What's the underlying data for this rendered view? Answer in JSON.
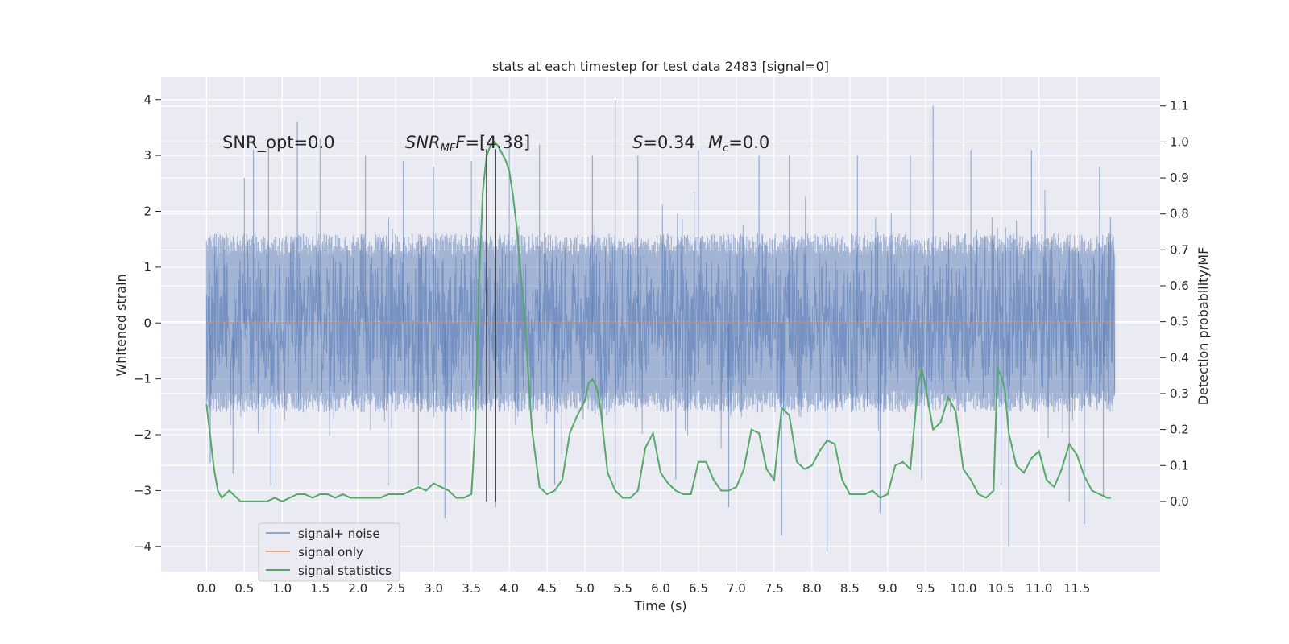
{
  "chart_data": {
    "type": "line",
    "title": "stats at each timestep for test data 2483 [signal=0]",
    "xlabel": "Time (s)",
    "ylabel": "Whitened strain",
    "y2label": "Detection probability/MF",
    "xlim": [
      -0.6,
      12.6
    ],
    "ylim": [
      -4.45,
      4.4
    ],
    "y2lim": [
      -0.195,
      1.18
    ],
    "grid": true,
    "legend_position": "lower-left",
    "x_ticks": [
      "0.0",
      "0.5",
      "1.0",
      "1.5",
      "2.0",
      "2.5",
      "3.0",
      "3.5",
      "4.0",
      "4.5",
      "5.0",
      "5.5",
      "6.0",
      "6.5",
      "7.0",
      "7.5",
      "8.0",
      "8.5",
      "9.0",
      "9.5",
      "10.0",
      "10.5",
      "11.0",
      "11.5"
    ],
    "y_ticks": [
      "4",
      "3",
      "2",
      "1",
      "0",
      "−1",
      "−2",
      "−3",
      "−4"
    ],
    "y2_ticks": [
      "1.1",
      "1.0",
      "0.9",
      "0.8",
      "0.7",
      "0.6",
      "0.5",
      "0.4",
      "0.3",
      "0.2",
      "0.1",
      "0.0"
    ],
    "annotations": {
      "snr_opt": "SNR_opt=0.0",
      "snr_mf_prefix": "SNR",
      "snr_mf_sub": "MF",
      "snr_mf_value": "=[4.38]",
      "s_var": "S",
      "s_value": "=0.34",
      "mc_var": "M",
      "mc_sub": "c",
      "mc_value": "=0.0"
    },
    "markers_x": [
      3.7,
      3.82
    ],
    "series": [
      {
        "name": "signal+ noise",
        "color": "#4c72b0",
        "description_values": "whitened strain noise, roughly gaussian with extremes",
        "x_range": [
          0.0,
          12.0
        ],
        "spikes": [
          [
            0.05,
            -2.5
          ],
          [
            0.35,
            -2.7
          ],
          [
            0.5,
            2.6
          ],
          [
            0.62,
            3.1
          ],
          [
            0.82,
            3.2
          ],
          [
            0.85,
            -2.9
          ],
          [
            1.2,
            3.6
          ],
          [
            1.5,
            3.3
          ],
          [
            2.1,
            3.0
          ],
          [
            2.4,
            -2.9
          ],
          [
            2.6,
            2.9
          ],
          [
            2.8,
            -2.9
          ],
          [
            3.0,
            2.8
          ],
          [
            3.15,
            -3.5
          ],
          [
            3.5,
            2.9
          ],
          [
            3.82,
            -3.3
          ],
          [
            4.0,
            3.4
          ],
          [
            4.4,
            3.2
          ],
          [
            4.6,
            -2.9
          ],
          [
            5.1,
            3.0
          ],
          [
            5.4,
            4.0
          ],
          [
            5.4,
            -2.9
          ],
          [
            5.7,
            3.0
          ],
          [
            6.2,
            -2.8
          ],
          [
            6.5,
            3.1
          ],
          [
            6.9,
            -3.3
          ],
          [
            7.3,
            3.0
          ],
          [
            7.6,
            -3.8
          ],
          [
            7.7,
            3.0
          ],
          [
            8.2,
            -4.1
          ],
          [
            8.6,
            3.0
          ],
          [
            8.9,
            -3.4
          ],
          [
            9.3,
            3.0
          ],
          [
            9.45,
            -2.8
          ],
          [
            9.6,
            3.9
          ],
          [
            10.1,
            3.1
          ],
          [
            10.5,
            -2.9
          ],
          [
            10.6,
            -4.0
          ],
          [
            10.9,
            3.1
          ],
          [
            11.4,
            -3.2
          ],
          [
            11.6,
            -3.6
          ],
          [
            11.8,
            2.8
          ],
          [
            11.85,
            -3.1
          ]
        ]
      },
      {
        "name": "signal only",
        "color": "#dd8452",
        "x": [
          0.0,
          12.0
        ],
        "y": [
          0.0,
          0.0
        ]
      },
      {
        "name": "signal statistics",
        "color": "#55a868",
        "axis": "right",
        "x": [
          0.0,
          0.05,
          0.1,
          0.15,
          0.2,
          0.25,
          0.3,
          0.35,
          0.4,
          0.45,
          0.5,
          0.6,
          0.7,
          0.8,
          0.9,
          1.0,
          1.1,
          1.2,
          1.3,
          1.4,
          1.5,
          1.6,
          1.7,
          1.8,
          1.9,
          2.0,
          2.1,
          2.2,
          2.3,
          2.4,
          2.5,
          2.6,
          2.7,
          2.8,
          2.9,
          3.0,
          3.1,
          3.2,
          3.3,
          3.4,
          3.5,
          3.55,
          3.6,
          3.65,
          3.7,
          3.75,
          3.8,
          3.85,
          3.9,
          3.95,
          4.0,
          4.05,
          4.1,
          4.15,
          4.2,
          4.3,
          4.4,
          4.5,
          4.6,
          4.7,
          4.8,
          4.9,
          5.0,
          5.05,
          5.1,
          5.15,
          5.2,
          5.3,
          5.4,
          5.5,
          5.6,
          5.7,
          5.8,
          5.9,
          6.0,
          6.1,
          6.2,
          6.3,
          6.4,
          6.5,
          6.6,
          6.7,
          6.8,
          6.9,
          7.0,
          7.1,
          7.2,
          7.3,
          7.4,
          7.5,
          7.6,
          7.7,
          7.8,
          7.9,
          8.0,
          8.1,
          8.2,
          8.3,
          8.4,
          8.5,
          8.6,
          8.7,
          8.8,
          8.9,
          9.0,
          9.1,
          9.2,
          9.3,
          9.4,
          9.45,
          9.5,
          9.6,
          9.7,
          9.8,
          9.9,
          10.0,
          10.1,
          10.2,
          10.3,
          10.4,
          10.45,
          10.5,
          10.55,
          10.6,
          10.7,
          10.8,
          10.9,
          11.0,
          11.1,
          11.2,
          11.3,
          11.4,
          11.5,
          11.6,
          11.7,
          11.8,
          11.9,
          11.95
        ],
        "y": [
          0.27,
          0.18,
          0.09,
          0.03,
          0.01,
          0.02,
          0.03,
          0.02,
          0.01,
          0.0,
          0.0,
          0.0,
          0.0,
          0.0,
          0.01,
          0.0,
          0.01,
          0.02,
          0.02,
          0.01,
          0.02,
          0.02,
          0.01,
          0.02,
          0.01,
          0.01,
          0.01,
          0.01,
          0.01,
          0.02,
          0.02,
          0.02,
          0.03,
          0.04,
          0.03,
          0.05,
          0.04,
          0.03,
          0.01,
          0.01,
          0.02,
          0.2,
          0.6,
          0.86,
          0.96,
          0.99,
          1.0,
          0.99,
          0.97,
          0.95,
          0.92,
          0.85,
          0.76,
          0.64,
          0.52,
          0.2,
          0.04,
          0.02,
          0.03,
          0.06,
          0.19,
          0.24,
          0.28,
          0.33,
          0.34,
          0.32,
          0.27,
          0.08,
          0.03,
          0.01,
          0.01,
          0.03,
          0.15,
          0.19,
          0.08,
          0.05,
          0.03,
          0.02,
          0.02,
          0.11,
          0.11,
          0.06,
          0.03,
          0.03,
          0.04,
          0.09,
          0.2,
          0.19,
          0.09,
          0.06,
          0.26,
          0.24,
          0.11,
          0.09,
          0.1,
          0.14,
          0.17,
          0.16,
          0.06,
          0.02,
          0.02,
          0.02,
          0.03,
          0.01,
          0.02,
          0.1,
          0.11,
          0.09,
          0.32,
          0.37,
          0.32,
          0.2,
          0.22,
          0.29,
          0.25,
          0.09,
          0.06,
          0.02,
          0.01,
          0.03,
          0.37,
          0.35,
          0.31,
          0.19,
          0.1,
          0.08,
          0.12,
          0.14,
          0.06,
          0.04,
          0.09,
          0.16,
          0.13,
          0.07,
          0.03,
          0.02,
          0.01,
          0.01
        ]
      }
    ]
  }
}
